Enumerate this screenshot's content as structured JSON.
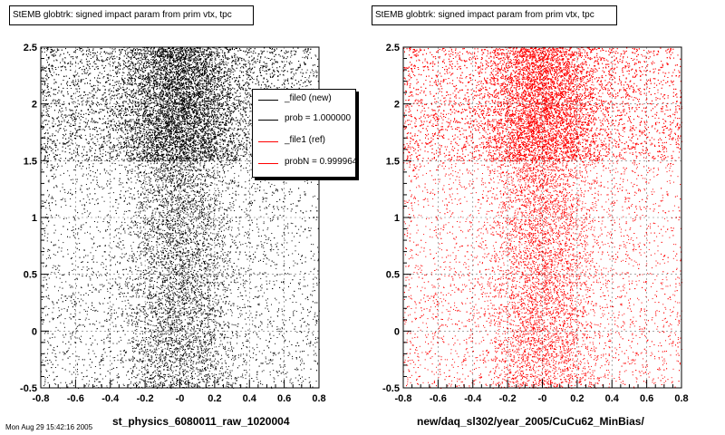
{
  "chart_data": [
    {
      "type": "scatter",
      "title": "StEMB globtrk: signed impact param from prim vtx, tpc",
      "xlabel": "st_physics_6080011_raw_1020004",
      "ylabel": "",
      "xlim": [
        -0.8,
        0.8
      ],
      "ylim": [
        -0.5,
        2.5
      ],
      "x_ticks": [
        "-0.8",
        "-0.6",
        "-0.4",
        "-0.2",
        "-0",
        "0.2",
        "0.4",
        "0.6",
        "0.8"
      ],
      "y_ticks": [
        "-0.5",
        "0",
        "0.5",
        "1",
        "1.5",
        "2",
        "2.5"
      ],
      "grid": true,
      "color": "#000000",
      "dense_band": [
        1.5,
        2.5
      ],
      "legend": {
        "placement": "top-right",
        "entries": [
          {
            "label": "_file0 (new)",
            "color": "#000000"
          },
          {
            "label": "prob = 1.000000",
            "color": "#000000"
          },
          {
            "label": "_file1 (ref)",
            "color": "#ff0000"
          },
          {
            "label": "probN = 0.999964",
            "color": "#ff0000"
          }
        ]
      }
    },
    {
      "type": "scatter",
      "title": "StEMB globtrk: signed impact param from prim vtx, tpc",
      "xlabel": "new/daq_sl302/year_2005/CuCu62_MinBias/",
      "ylabel": "",
      "xlim": [
        -0.8,
        0.8
      ],
      "ylim": [
        -0.5,
        2.5
      ],
      "x_ticks": [
        "-0.8",
        "-0.6",
        "-0.4",
        "-0.2",
        "-0",
        "0.2",
        "0.4",
        "0.6",
        "0.8"
      ],
      "y_ticks": [
        "-0.5",
        "0",
        "0.5",
        "1",
        "1.5",
        "2",
        "2.5"
      ],
      "grid": true,
      "color": "#ff0000",
      "dense_band": [
        1.5,
        2.5
      ]
    }
  ],
  "footer_text": "Mon Aug 29 15:42:16 2005"
}
